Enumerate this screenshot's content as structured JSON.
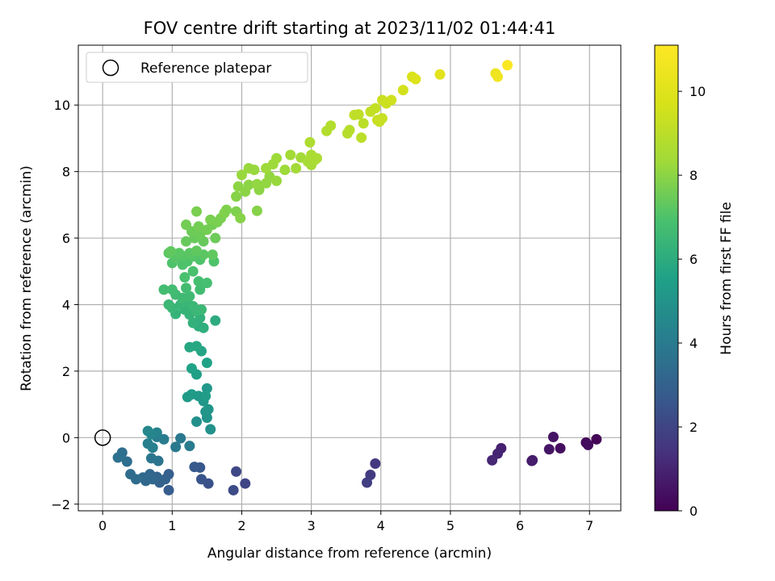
{
  "chart_data": {
    "type": "scatter",
    "title": "FOV centre drift starting at 2023/11/02 01:44:41",
    "xlabel": "Angular distance from reference (arcmin)",
    "ylabel": "Rotation from reference (arcmin)",
    "xlim": [
      -0.35,
      7.45
    ],
    "ylim": [
      -2.2,
      11.8
    ],
    "xticks": [
      0,
      1,
      2,
      3,
      4,
      5,
      6,
      7
    ],
    "yticks": [
      -2,
      0,
      2,
      4,
      6,
      8,
      10
    ],
    "grid": true,
    "colormap": "viridis",
    "colorbar": {
      "label": "Hours from first FF file",
      "range": [
        0,
        11.1
      ],
      "ticks": [
        0,
        2,
        4,
        6,
        8,
        10
      ]
    },
    "legend": {
      "position": "top-left",
      "entries": [
        "Reference platepar"
      ]
    },
    "reference_point": {
      "x": 0,
      "y": 0
    },
    "points": [
      {
        "x": 7.1,
        "y": -0.05,
        "c": 0.1
      },
      {
        "x": 6.95,
        "y": -0.15,
        "c": 0.2
      },
      {
        "x": 6.98,
        "y": -0.22,
        "c": 0.3
      },
      {
        "x": 6.58,
        "y": -0.32,
        "c": 0.4
      },
      {
        "x": 6.48,
        "y": 0.02,
        "c": 0.5
      },
      {
        "x": 6.42,
        "y": -0.35,
        "c": 0.6
      },
      {
        "x": 6.18,
        "y": -0.68,
        "c": 0.7
      },
      {
        "x": 6.17,
        "y": -0.7,
        "c": 0.8
      },
      {
        "x": 5.73,
        "y": -0.32,
        "c": 0.9
      },
      {
        "x": 5.68,
        "y": -0.48,
        "c": 1.0
      },
      {
        "x": 5.6,
        "y": -0.68,
        "c": 1.1
      },
      {
        "x": 3.92,
        "y": -0.78,
        "c": 1.6
      },
      {
        "x": 3.85,
        "y": -1.12,
        "c": 1.7
      },
      {
        "x": 3.8,
        "y": -1.35,
        "c": 1.8
      },
      {
        "x": 2.05,
        "y": -1.38,
        "c": 2.0
      },
      {
        "x": 1.92,
        "y": -1.02,
        "c": 2.1
      },
      {
        "x": 1.88,
        "y": -1.58,
        "c": 2.2
      },
      {
        "x": 1.52,
        "y": -1.38,
        "c": 2.4
      },
      {
        "x": 1.42,
        "y": -1.25,
        "c": 2.5
      },
      {
        "x": 1.4,
        "y": -0.9,
        "c": 2.6
      },
      {
        "x": 1.32,
        "y": -0.88,
        "c": 2.7
      },
      {
        "x": 0.95,
        "y": -1.58,
        "c": 2.8
      },
      {
        "x": 0.95,
        "y": -1.1,
        "c": 2.9
      },
      {
        "x": 0.9,
        "y": -1.25,
        "c": 3.0
      },
      {
        "x": 0.82,
        "y": -1.35,
        "c": 3.0
      },
      {
        "x": 0.78,
        "y": -1.18,
        "c": 3.1
      },
      {
        "x": 0.72,
        "y": -1.25,
        "c": 3.2
      },
      {
        "x": 0.68,
        "y": -1.1,
        "c": 3.2
      },
      {
        "x": 0.62,
        "y": -1.3,
        "c": 3.3
      },
      {
        "x": 0.58,
        "y": -1.2,
        "c": 3.3
      },
      {
        "x": 0.48,
        "y": -1.25,
        "c": 3.4
      },
      {
        "x": 0.4,
        "y": -1.1,
        "c": 3.4
      },
      {
        "x": 0.35,
        "y": -0.72,
        "c": 3.5
      },
      {
        "x": 0.28,
        "y": -0.45,
        "c": 3.5
      },
      {
        "x": 0.22,
        "y": -0.6,
        "c": 3.6
      },
      {
        "x": 0.8,
        "y": -0.7,
        "c": 3.7
      },
      {
        "x": 0.7,
        "y": -0.62,
        "c": 3.8
      },
      {
        "x": 1.05,
        "y": -0.28,
        "c": 3.9
      },
      {
        "x": 1.12,
        "y": -0.02,
        "c": 3.9
      },
      {
        "x": 1.25,
        "y": -0.25,
        "c": 4.0
      },
      {
        "x": 0.88,
        "y": -0.05,
        "c": 4.0
      },
      {
        "x": 0.78,
        "y": 0.02,
        "c": 4.1
      },
      {
        "x": 0.72,
        "y": -0.3,
        "c": 4.2
      },
      {
        "x": 0.65,
        "y": -0.18,
        "c": 4.2
      },
      {
        "x": 0.78,
        "y": 0.15,
        "c": 4.3
      },
      {
        "x": 0.7,
        "y": 0.1,
        "c": 4.4
      },
      {
        "x": 0.65,
        "y": 0.2,
        "c": 4.5
      },
      {
        "x": 1.35,
        "y": 0.48,
        "c": 4.8
      },
      {
        "x": 1.55,
        "y": 0.25,
        "c": 4.9
      },
      {
        "x": 1.5,
        "y": 0.6,
        "c": 5.0
      },
      {
        "x": 1.48,
        "y": 0.78,
        "c": 5.0
      },
      {
        "x": 1.52,
        "y": 0.85,
        "c": 5.1
      },
      {
        "x": 1.45,
        "y": 1.1,
        "c": 5.1
      },
      {
        "x": 1.5,
        "y": 1.48,
        "c": 5.2
      },
      {
        "x": 1.38,
        "y": 1.25,
        "c": 5.2
      },
      {
        "x": 1.28,
        "y": 1.3,
        "c": 5.3
      },
      {
        "x": 1.22,
        "y": 1.22,
        "c": 5.3
      },
      {
        "x": 1.48,
        "y": 1.25,
        "c": 5.4
      },
      {
        "x": 1.35,
        "y": 1.9,
        "c": 5.5
      },
      {
        "x": 1.28,
        "y": 2.08,
        "c": 5.6
      },
      {
        "x": 1.5,
        "y": 2.25,
        "c": 5.6
      },
      {
        "x": 1.42,
        "y": 2.6,
        "c": 5.7
      },
      {
        "x": 1.35,
        "y": 2.75,
        "c": 5.8
      },
      {
        "x": 1.25,
        "y": 2.72,
        "c": 5.8
      },
      {
        "x": 1.62,
        "y": 3.52,
        "c": 6.0
      },
      {
        "x": 1.45,
        "y": 3.3,
        "c": 6.1
      },
      {
        "x": 1.38,
        "y": 3.35,
        "c": 6.1
      },
      {
        "x": 1.3,
        "y": 3.45,
        "c": 6.2
      },
      {
        "x": 1.4,
        "y": 3.6,
        "c": 6.2
      },
      {
        "x": 1.25,
        "y": 3.7,
        "c": 6.3
      },
      {
        "x": 1.18,
        "y": 3.85,
        "c": 6.3
      },
      {
        "x": 1.05,
        "y": 3.72,
        "c": 6.3
      },
      {
        "x": 1.0,
        "y": 3.9,
        "c": 6.4
      },
      {
        "x": 1.12,
        "y": 4.0,
        "c": 6.4
      },
      {
        "x": 1.22,
        "y": 4.05,
        "c": 6.4
      },
      {
        "x": 1.3,
        "y": 3.95,
        "c": 6.5
      },
      {
        "x": 1.35,
        "y": 3.8,
        "c": 6.5
      },
      {
        "x": 1.42,
        "y": 3.85,
        "c": 6.5
      },
      {
        "x": 0.95,
        "y": 4.0,
        "c": 6.5
      },
      {
        "x": 1.15,
        "y": 4.2,
        "c": 6.6
      },
      {
        "x": 1.25,
        "y": 4.25,
        "c": 6.6
      },
      {
        "x": 1.05,
        "y": 4.3,
        "c": 6.6
      },
      {
        "x": 0.88,
        "y": 4.45,
        "c": 6.7
      },
      {
        "x": 1.0,
        "y": 4.45,
        "c": 6.7
      },
      {
        "x": 1.2,
        "y": 4.5,
        "c": 6.7
      },
      {
        "x": 1.4,
        "y": 4.45,
        "c": 6.7
      },
      {
        "x": 1.5,
        "y": 4.65,
        "c": 6.8
      },
      {
        "x": 1.38,
        "y": 4.7,
        "c": 6.8
      },
      {
        "x": 1.18,
        "y": 4.82,
        "c": 6.9
      },
      {
        "x": 1.3,
        "y": 5.0,
        "c": 6.9
      },
      {
        "x": 1.15,
        "y": 5.2,
        "c": 7.0
      },
      {
        "x": 1.0,
        "y": 5.25,
        "c": 7.0
      },
      {
        "x": 1.22,
        "y": 5.3,
        "c": 7.0
      },
      {
        "x": 1.6,
        "y": 5.3,
        "c": 7.0
      },
      {
        "x": 1.4,
        "y": 5.35,
        "c": 7.0
      },
      {
        "x": 1.05,
        "y": 5.4,
        "c": 7.1
      },
      {
        "x": 1.18,
        "y": 5.45,
        "c": 7.1
      },
      {
        "x": 1.3,
        "y": 5.45,
        "c": 7.1
      },
      {
        "x": 0.95,
        "y": 5.55,
        "c": 7.2
      },
      {
        "x": 1.1,
        "y": 5.55,
        "c": 7.2
      },
      {
        "x": 1.25,
        "y": 5.55,
        "c": 7.2
      },
      {
        "x": 1.45,
        "y": 5.5,
        "c": 7.2
      },
      {
        "x": 1.58,
        "y": 5.5,
        "c": 7.3
      },
      {
        "x": 0.98,
        "y": 5.6,
        "c": 7.3
      },
      {
        "x": 1.35,
        "y": 5.62,
        "c": 7.3
      },
      {
        "x": 1.2,
        "y": 5.9,
        "c": 7.4
      },
      {
        "x": 1.32,
        "y": 6.0,
        "c": 7.4
      },
      {
        "x": 1.45,
        "y": 5.9,
        "c": 7.4
      },
      {
        "x": 1.62,
        "y": 6.0,
        "c": 7.5
      },
      {
        "x": 1.4,
        "y": 6.1,
        "c": 7.5
      },
      {
        "x": 1.28,
        "y": 6.2,
        "c": 7.5
      },
      {
        "x": 1.5,
        "y": 6.25,
        "c": 7.6
      },
      {
        "x": 1.38,
        "y": 6.35,
        "c": 7.6
      },
      {
        "x": 1.2,
        "y": 6.4,
        "c": 7.6
      },
      {
        "x": 1.58,
        "y": 6.4,
        "c": 7.6
      },
      {
        "x": 1.55,
        "y": 6.55,
        "c": 7.7
      },
      {
        "x": 1.35,
        "y": 6.8,
        "c": 7.7
      },
      {
        "x": 1.7,
        "y": 6.6,
        "c": 7.7
      },
      {
        "x": 1.65,
        "y": 6.48,
        "c": 7.7
      },
      {
        "x": 1.75,
        "y": 6.75,
        "c": 7.8
      },
      {
        "x": 1.78,
        "y": 6.85,
        "c": 7.8
      },
      {
        "x": 1.92,
        "y": 6.8,
        "c": 7.8
      },
      {
        "x": 1.98,
        "y": 6.6,
        "c": 7.9
      },
      {
        "x": 2.22,
        "y": 6.82,
        "c": 7.9
      },
      {
        "x": 1.92,
        "y": 7.25,
        "c": 7.9
      },
      {
        "x": 1.95,
        "y": 7.55,
        "c": 8.0
      },
      {
        "x": 2.05,
        "y": 7.4,
        "c": 8.0
      },
      {
        "x": 2.1,
        "y": 7.6,
        "c": 8.0
      },
      {
        "x": 2.25,
        "y": 7.45,
        "c": 8.0
      },
      {
        "x": 2.22,
        "y": 7.62,
        "c": 8.1
      },
      {
        "x": 2.35,
        "y": 7.65,
        "c": 8.1
      },
      {
        "x": 2.4,
        "y": 7.85,
        "c": 8.1
      },
      {
        "x": 2.5,
        "y": 7.72,
        "c": 8.2
      },
      {
        "x": 2.0,
        "y": 7.9,
        "c": 8.2
      },
      {
        "x": 2.1,
        "y": 8.1,
        "c": 8.2
      },
      {
        "x": 2.18,
        "y": 8.05,
        "c": 8.2
      },
      {
        "x": 2.35,
        "y": 8.1,
        "c": 8.3
      },
      {
        "x": 2.45,
        "y": 8.22,
        "c": 8.3
      },
      {
        "x": 2.5,
        "y": 8.4,
        "c": 8.3
      },
      {
        "x": 2.62,
        "y": 8.05,
        "c": 8.3
      },
      {
        "x": 2.78,
        "y": 8.1,
        "c": 8.4
      },
      {
        "x": 2.7,
        "y": 8.5,
        "c": 8.4
      },
      {
        "x": 2.85,
        "y": 8.42,
        "c": 8.4
      },
      {
        "x": 2.95,
        "y": 8.3,
        "c": 8.5
      },
      {
        "x": 3.0,
        "y": 8.2,
        "c": 8.5
      },
      {
        "x": 3.05,
        "y": 8.35,
        "c": 8.5
      },
      {
        "x": 3.0,
        "y": 8.5,
        "c": 8.6
      },
      {
        "x": 3.08,
        "y": 8.4,
        "c": 8.6
      },
      {
        "x": 2.98,
        "y": 8.88,
        "c": 8.7
      },
      {
        "x": 3.22,
        "y": 9.22,
        "c": 8.8
      },
      {
        "x": 3.28,
        "y": 9.38,
        "c": 8.8
      },
      {
        "x": 3.52,
        "y": 9.15,
        "c": 8.9
      },
      {
        "x": 3.55,
        "y": 9.25,
        "c": 8.9
      },
      {
        "x": 3.72,
        "y": 9.02,
        "c": 9.0
      },
      {
        "x": 3.75,
        "y": 9.45,
        "c": 9.0
      },
      {
        "x": 3.62,
        "y": 9.7,
        "c": 9.1
      },
      {
        "x": 3.68,
        "y": 9.72,
        "c": 9.1
      },
      {
        "x": 3.85,
        "y": 9.8,
        "c": 9.2
      },
      {
        "x": 3.92,
        "y": 9.9,
        "c": 9.2
      },
      {
        "x": 3.98,
        "y": 9.5,
        "c": 9.3
      },
      {
        "x": 4.02,
        "y": 9.6,
        "c": 9.3
      },
      {
        "x": 3.95,
        "y": 9.55,
        "c": 9.3
      },
      {
        "x": 4.02,
        "y": 10.15,
        "c": 9.4
      },
      {
        "x": 4.08,
        "y": 10.05,
        "c": 9.4
      },
      {
        "x": 4.15,
        "y": 10.15,
        "c": 9.5
      },
      {
        "x": 4.32,
        "y": 10.45,
        "c": 9.6
      },
      {
        "x": 4.45,
        "y": 10.85,
        "c": 9.8
      },
      {
        "x": 4.5,
        "y": 10.78,
        "c": 9.9
      },
      {
        "x": 4.85,
        "y": 10.92,
        "c": 10.1
      },
      {
        "x": 5.65,
        "y": 10.95,
        "c": 10.5
      },
      {
        "x": 5.68,
        "y": 10.85,
        "c": 10.6
      },
      {
        "x": 5.82,
        "y": 11.2,
        "c": 11.0
      }
    ]
  }
}
